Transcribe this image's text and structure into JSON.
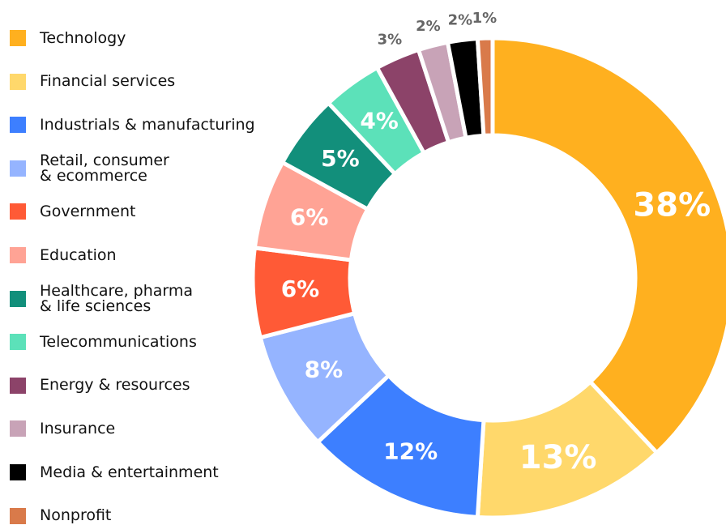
{
  "chart_data": {
    "type": "donut",
    "categories": [
      "Technology",
      "Financial services",
      "Industrials & manufacturing",
      "Retail, consumer\n& ecommerce",
      "Government",
      "Education",
      "Healthcare, pharma\n& life sciences",
      "Telecommunications",
      "Energy & resources",
      "Insurance",
      "Media & entertainment",
      "Nonprofit"
    ],
    "values": [
      38,
      13,
      12,
      8,
      6,
      6,
      5,
      4,
      3,
      2,
      2,
      1
    ],
    "value_labels": [
      "38%",
      "13%",
      "12%",
      "8%",
      "6%",
      "6%",
      "5%",
      "4%",
      "3%",
      "2%",
      "2%",
      "1%"
    ],
    "colors": [
      "#ffb01f",
      "#ffd86b",
      "#3d7fff",
      "#95b4ff",
      "#ff5a36",
      "#ffa395",
      "#128f7b",
      "#5ce1b9",
      "#8c4369",
      "#c8a3b7",
      "#000000",
      "#d97a4a"
    ]
  }
}
